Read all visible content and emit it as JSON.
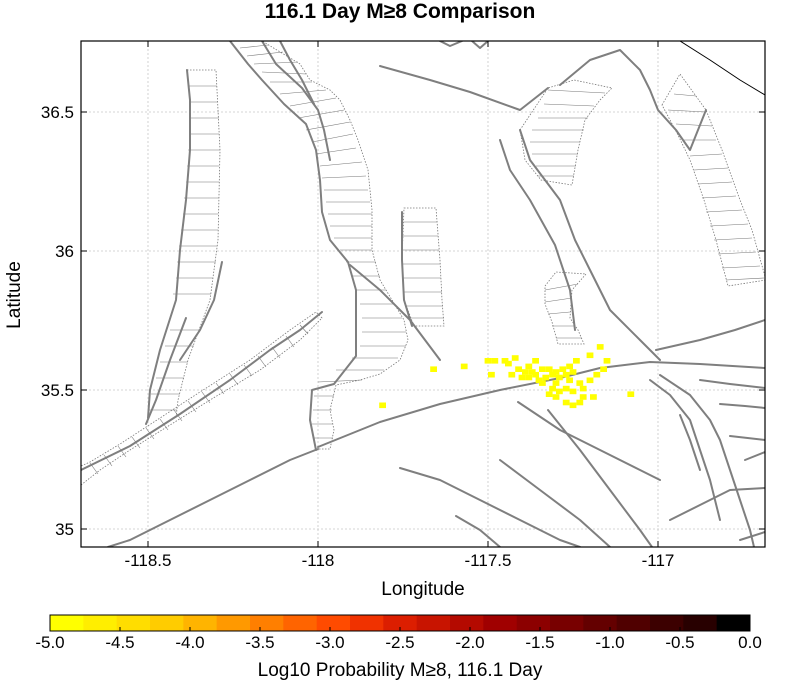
{
  "title": "116.1 Day M≥8 Comparison",
  "x_axis": {
    "label": "Longitude",
    "ticks": [
      {
        "value": -118.5,
        "label": "-118.5"
      },
      {
        "value": -118.0,
        "label": "-118"
      },
      {
        "value": -117.5,
        "label": "-117.5"
      },
      {
        "value": -117.0,
        "label": "-117"
      }
    ]
  },
  "y_axis": {
    "label": "Latitude",
    "ticks": [
      {
        "value": 36.5,
        "label": "36.5"
      },
      {
        "value": 36.0,
        "label": "36"
      },
      {
        "value": 35.5,
        "label": "35.5"
      },
      {
        "value": 35.0,
        "label": "35"
      }
    ]
  },
  "colorbar": {
    "label": "Log10 Probability M≥8, 116.1 Day",
    "min": -5.0,
    "max": 0.0,
    "colors": [
      "#ffff00",
      "#ffee00",
      "#ffdd00",
      "#ffcc00",
      "#ffb400",
      "#ff9900",
      "#ff7f00",
      "#ff6400",
      "#ff4b00",
      "#f03200",
      "#dc1e00",
      "#c81400",
      "#b40a00",
      "#a00000",
      "#8c0000",
      "#780000",
      "#640000",
      "#500000",
      "#3c0000",
      "#280000",
      "#000000"
    ],
    "ticks": [
      {
        "value": -5.0,
        "label": "-5.0"
      },
      {
        "value": -4.5,
        "label": "-4.5"
      },
      {
        "value": -4.0,
        "label": "-4.0"
      },
      {
        "value": -3.5,
        "label": "-3.5"
      },
      {
        "value": -3.0,
        "label": "-3.0"
      },
      {
        "value": -2.5,
        "label": "-2.5"
      },
      {
        "value": -2.0,
        "label": "-2.0"
      },
      {
        "value": -1.5,
        "label": "-1.5"
      },
      {
        "value": -1.0,
        "label": "-1.0"
      },
      {
        "value": -0.5,
        "label": "-0.5"
      },
      {
        "value": 0.0,
        "label": "0.0"
      }
    ]
  },
  "probability_cells": [
    [
      -117.5,
      35.605
    ],
    [
      -117.48,
      35.605
    ],
    [
      -117.45,
      35.605
    ],
    [
      -117.42,
      35.615
    ],
    [
      -117.44,
      35.595
    ],
    [
      -117.41,
      35.575
    ],
    [
      -117.39,
      35.565
    ],
    [
      -117.37,
      35.565
    ],
    [
      -117.36,
      35.555
    ],
    [
      -117.38,
      35.545
    ],
    [
      -117.4,
      35.545
    ],
    [
      -117.35,
      35.535
    ],
    [
      -117.33,
      35.545
    ],
    [
      -117.31,
      35.555
    ],
    [
      -117.29,
      35.545
    ],
    [
      -117.27,
      35.555
    ],
    [
      -117.25,
      35.565
    ],
    [
      -117.28,
      35.575
    ],
    [
      -117.3,
      35.565
    ],
    [
      -117.32,
      35.575
    ],
    [
      -117.34,
      35.525
    ],
    [
      -117.31,
      35.505
    ],
    [
      -117.29,
      35.495
    ],
    [
      -117.27,
      35.505
    ],
    [
      -117.25,
      35.495
    ],
    [
      -117.23,
      35.525
    ],
    [
      -117.26,
      35.535
    ],
    [
      -117.32,
      35.485
    ],
    [
      -117.3,
      35.475
    ],
    [
      -117.27,
      35.455
    ],
    [
      -117.25,
      35.445
    ],
    [
      -117.23,
      35.455
    ],
    [
      -117.22,
      35.475
    ],
    [
      -117.2,
      35.535
    ],
    [
      -117.18,
      35.555
    ],
    [
      -117.16,
      35.575
    ],
    [
      -117.2,
      35.625
    ],
    [
      -117.17,
      35.655
    ],
    [
      -117.15,
      35.605
    ],
    [
      -117.19,
      35.475
    ],
    [
      -117.08,
      35.485
    ],
    [
      -117.57,
      35.585
    ],
    [
      -117.49,
      35.555
    ],
    [
      -117.66,
      35.575
    ],
    [
      -117.81,
      35.445
    ],
    [
      -117.36,
      35.605
    ],
    [
      -117.38,
      35.585
    ],
    [
      -117.34,
      35.575
    ],
    [
      -117.26,
      35.585
    ],
    [
      -117.24,
      35.605
    ],
    [
      -117.43,
      35.555
    ],
    [
      -117.22,
      35.505
    ],
    [
      -117.3,
      35.525
    ]
  ]
}
